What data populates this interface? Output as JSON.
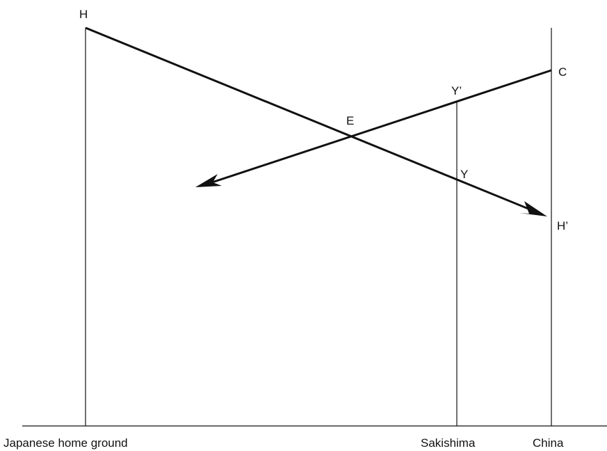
{
  "points": {
    "h": "H",
    "h_prime": "H’",
    "c": "C",
    "y_prime": "Y’",
    "y": "Y",
    "e": "E"
  },
  "axis_labels": {
    "japanese_home_ground": "Japanese home ground",
    "sakishima": "Sakishima",
    "china": "China"
  }
}
